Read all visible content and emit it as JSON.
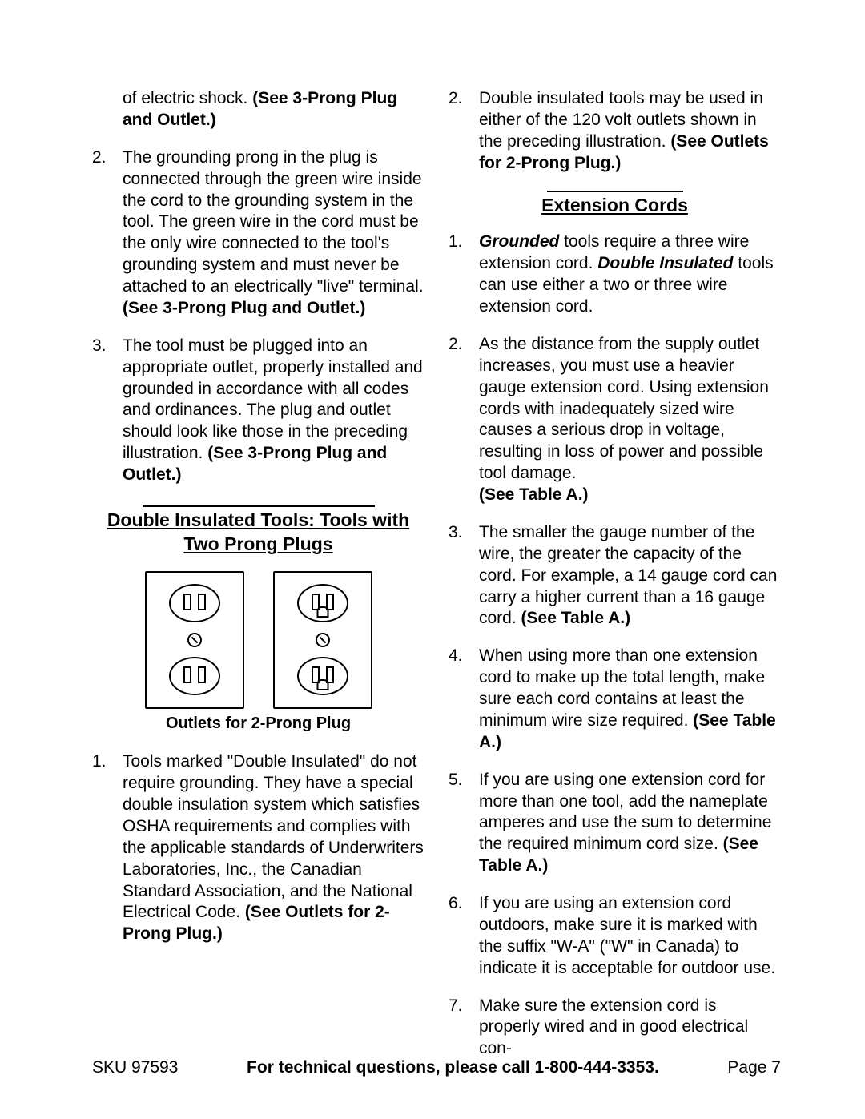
{
  "left": {
    "cont1_a": "of electric shock.  ",
    "cont1_b": "(See 3-Prong Plug and Outlet.)",
    "item2_a": "The grounding prong in the plug is connected through the green wire inside the cord to the grounding system in the tool.  The green wire in the cord must be the only wire connected to the tool's grounding system and must never be attached to an electrically \"live\" terminal.  ",
    "item2_b": "(See 3-Prong Plug and Outlet.)",
    "item3_a": "The tool must be plugged into an appropriate outlet, properly installed and grounded in accordance with all codes and ordinances.  The plug and outlet should look like those in the preceding illustration.  ",
    "item3_b": "(See 3-Prong Plug and Outlet.)",
    "sec_title": "Double Insulated Tools: Tools with Two Prong Plugs",
    "caption": "Outlets for 2-Prong Plug",
    "di1_a": "Tools marked \"Double Insulated\" do not require grounding.  They have a special double insulation system which satisfies OSHA requirements and complies with the applicable standards of Underwriters Laboratories, Inc., the Canadian Standard Association, and the National Electrical Code.  ",
    "di1_b": "(See Outlets for 2-Prong Plug.)"
  },
  "right": {
    "di2_a": "Double insulated tools may be used in either of the 120 volt outlets shown in the preceding illustration.  ",
    "di2_b": "(See Outlets for 2-Prong Plug.)",
    "ec_title": "Extension Cords",
    "ec1_a": "Grounded",
    "ec1_b": " tools require a three wire extension cord.  ",
    "ec1_c": "Double Insulated",
    "ec1_d": " tools can use either a two or three wire extension cord.",
    "ec2_a": "As the distance from the supply outlet increases, you must use a heavier gauge extension cord.  Using extension cords with inadequately sized wire causes a serious drop in voltage, resulting in loss of power and possible tool damage.",
    "ec2_b": "(See Table A.)",
    "ec3_a": "The smaller the gauge number of the wire, the greater the capacity of the cord.  For example, a 14 gauge cord can carry a higher current than a 16 gauge cord.  ",
    "ec3_b": "(See Table A.)",
    "ec4_a": "When using more than one extension cord to make up the total length, make sure each cord contains at least the minimum wire size required.  ",
    "ec4_b": "(See Table A.)",
    "ec5_a": "If you are using one extension cord for more than one tool, add the nameplate amperes and use the sum to determine the required minimum cord size.  ",
    "ec5_b": "(See Table A.)",
    "ec6": "If you are using an extension cord outdoors, make sure it is marked with the suffix \"W-A\" (\"W\" in Canada) to indicate it is acceptable for outdoor use.",
    "ec7": "Make sure the extension cord is properly wired and in good electrical con-"
  },
  "footer": {
    "sku": "SKU 97593",
    "mid": "For technical questions, please call 1-800-444-3353.",
    "page": "Page 7"
  },
  "nums": {
    "n1": "1.",
    "n2": "2.",
    "n3": "3.",
    "n4": "4.",
    "n5": "5.",
    "n6": "6.",
    "n7": "7."
  }
}
